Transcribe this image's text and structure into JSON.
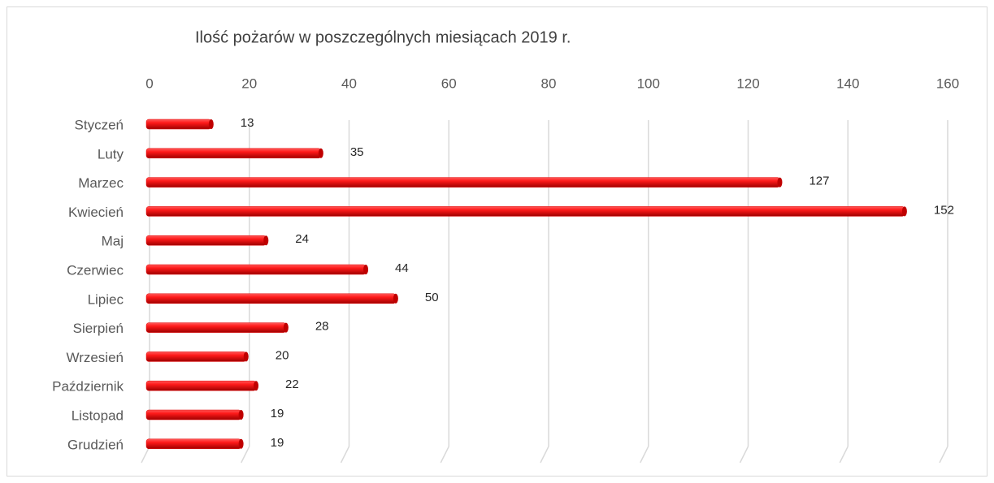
{
  "chart_data": {
    "type": "bar",
    "orientation": "horizontal",
    "title": "Ilość pożarów w poszczególnych miesiącach 2019 r.",
    "categories": [
      "Styczeń",
      "Luty",
      "Marzec",
      "Kwiecień",
      "Maj",
      "Czerwiec",
      "Lipiec",
      "Sierpień",
      "Wrzesień",
      "Październik",
      "Listopad",
      "Grudzień"
    ],
    "values": [
      13,
      35,
      127,
      152,
      24,
      44,
      50,
      28,
      20,
      22,
      19,
      19
    ],
    "color": "#e00000",
    "xlim": [
      0,
      160
    ],
    "xticks": [
      0,
      20,
      40,
      60,
      80,
      100,
      120,
      140,
      160
    ],
    "grid": true,
    "data_labels": true
  }
}
